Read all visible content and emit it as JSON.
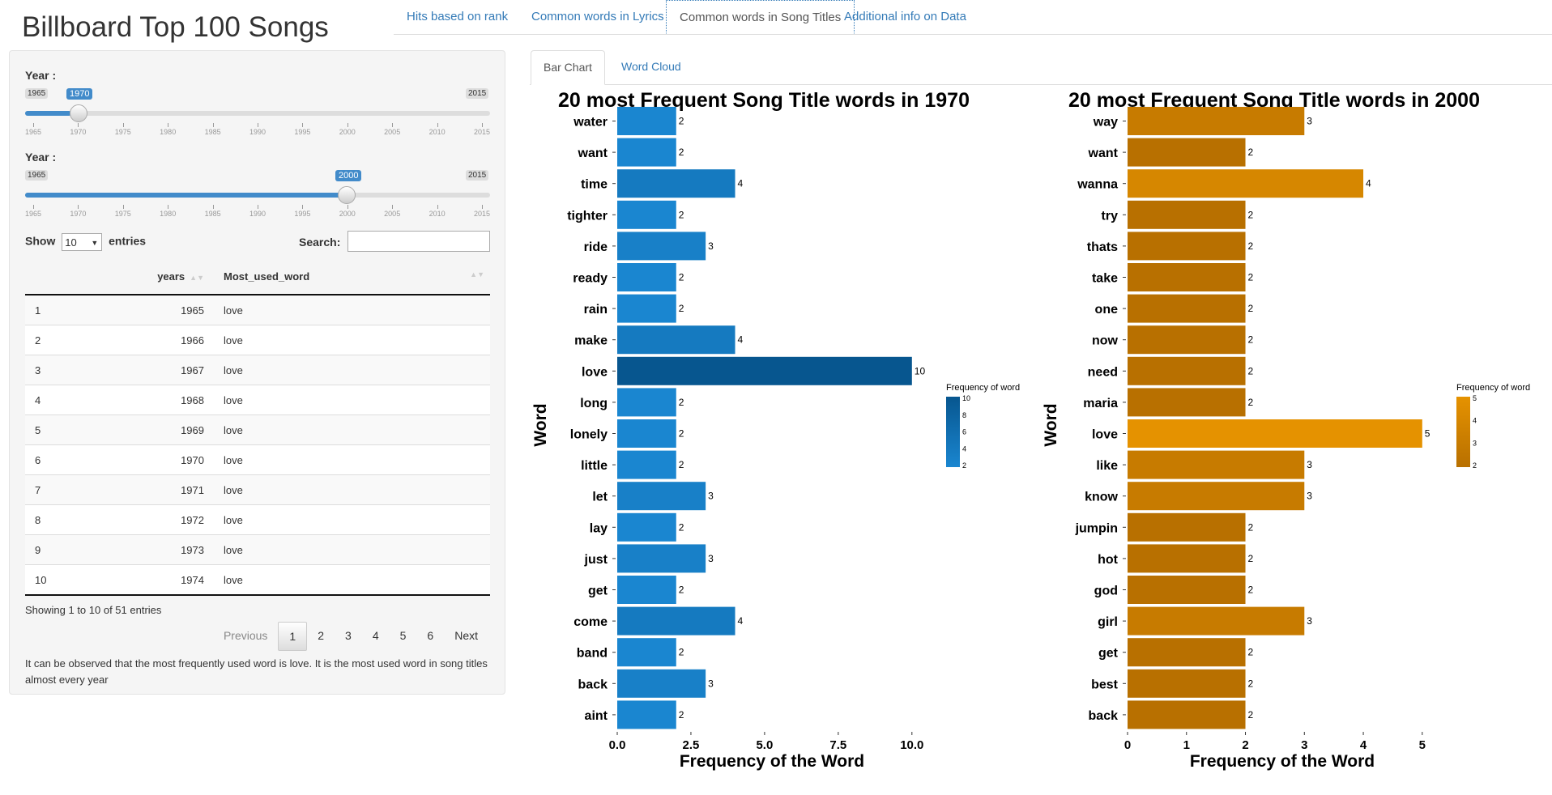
{
  "app_title": "Billboard Top 100 Songs",
  "tabs": [
    {
      "label": "Hits based on rank",
      "active": false
    },
    {
      "label": "Common words in Lyrics",
      "active": false
    },
    {
      "label": "Common words in Song Titles",
      "active": true
    },
    {
      "label": "Additional info on Data",
      "active": false
    }
  ],
  "sliders": [
    {
      "label": "Year :",
      "min": 1965,
      "max": 2015,
      "value": 1970,
      "min_label": "1965",
      "max_label": "2015",
      "value_label": "1970"
    },
    {
      "label": "Year :",
      "min": 1965,
      "max": 2015,
      "value": 2000,
      "min_label": "1965",
      "max_label": "2015",
      "value_label": "2000"
    }
  ],
  "slider_ticks": [
    "1965",
    "1970",
    "1975",
    "1980",
    "1985",
    "1990",
    "1995",
    "2000",
    "2005",
    "2010",
    "2015"
  ],
  "table_controls": {
    "show_label": "Show",
    "entries_value": "10",
    "entries_label": "entries",
    "search_label": "Search:"
  },
  "table": {
    "headers": [
      "",
      "years",
      "Most_used_word"
    ],
    "rows": [
      [
        "1",
        "1965",
        "love"
      ],
      [
        "2",
        "1966",
        "love"
      ],
      [
        "3",
        "1967",
        "love"
      ],
      [
        "4",
        "1968",
        "love"
      ],
      [
        "5",
        "1969",
        "love"
      ],
      [
        "6",
        "1970",
        "love"
      ],
      [
        "7",
        "1971",
        "love"
      ],
      [
        "8",
        "1972",
        "love"
      ],
      [
        "9",
        "1973",
        "love"
      ],
      [
        "10",
        "1974",
        "love"
      ]
    ]
  },
  "table_info": "Showing 1 to 10 of 51 entries",
  "pagination": {
    "previous": "Previous",
    "pages": [
      "1",
      "2",
      "3",
      "4",
      "5",
      "6"
    ],
    "current": "1",
    "next": "Next"
  },
  "note": "It can be observed that the most frequently used word is love. It is the most used word in song titles almost every year",
  "subtabs": [
    {
      "label": "Bar Chart",
      "active": true
    },
    {
      "label": "Word Cloud",
      "active": false
    }
  ],
  "chart_data": [
    {
      "type": "bar",
      "orientation": "horizontal",
      "title": "20 most Frequent Song Title words in 1970",
      "xlabel": "Frequency of the Word",
      "ylabel": "Word",
      "categories": [
        "water",
        "want",
        "time",
        "tighter",
        "ride",
        "ready",
        "rain",
        "make",
        "love",
        "long",
        "lonely",
        "little",
        "let",
        "lay",
        "just",
        "get",
        "come",
        "band",
        "back",
        "aint"
      ],
      "values": [
        2,
        2,
        4,
        2,
        3,
        2,
        2,
        4,
        10,
        2,
        2,
        2,
        3,
        2,
        3,
        2,
        4,
        2,
        3,
        2
      ],
      "xlim": [
        0,
        10.5
      ],
      "xticks": [
        "0.0",
        "2.5",
        "5.0",
        "7.5",
        "10.0"
      ],
      "xtick_values": [
        0,
        2.5,
        5,
        7.5,
        10
      ],
      "legend_title": "Frequency of word",
      "legend_ticks": [
        "10",
        "8",
        "6",
        "4",
        "2"
      ],
      "color_low": "#1a86d0",
      "color_high": "#07568f"
    },
    {
      "type": "bar",
      "orientation": "horizontal",
      "title": "20 most Frequent Song Title words in 2000",
      "xlabel": "Frequency of the Word",
      "ylabel": "Word",
      "categories": [
        "way",
        "want",
        "wanna",
        "try",
        "thats",
        "take",
        "one",
        "now",
        "need",
        "maria",
        "love",
        "like",
        "know",
        "jumpin",
        "hot",
        "god",
        "girl",
        "get",
        "best",
        "back"
      ],
      "values": [
        3,
        2,
        4,
        2,
        2,
        2,
        2,
        2,
        2,
        2,
        5,
        3,
        3,
        2,
        2,
        2,
        3,
        2,
        2,
        2
      ],
      "xlim": [
        0,
        5.25
      ],
      "xticks": [
        "0",
        "1",
        "2",
        "3",
        "4",
        "5"
      ],
      "xtick_values": [
        0,
        1,
        2,
        3,
        4,
        5
      ],
      "legend_title": "Frequency of word",
      "legend_ticks": [
        "5",
        "4",
        "3",
        "2"
      ],
      "color_low": "#b87000",
      "color_high": "#e59200"
    }
  ]
}
